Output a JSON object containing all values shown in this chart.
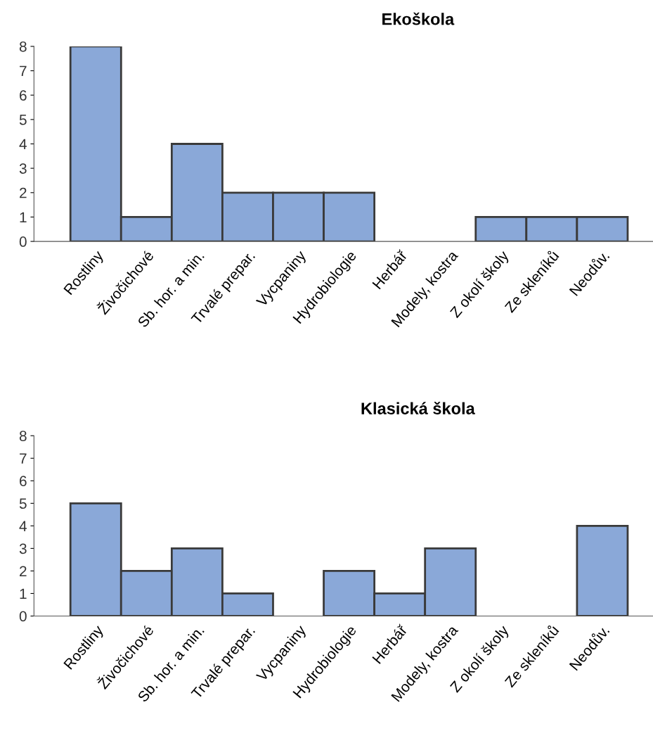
{
  "chart_data": [
    {
      "type": "bar",
      "title": "Ekoškola",
      "categories": [
        "Rostliny",
        "Živočichové",
        "Sb. hor. a min.",
        "Trvalé prepar.",
        "Vycpaniny",
        "Hydrobiologie",
        "Herbář",
        "Modely, kostra",
        "Z okolí školy",
        "Ze skleníků",
        "Neodův."
      ],
      "values": [
        8,
        1,
        4,
        2,
        2,
        2,
        0,
        0,
        1,
        1,
        1
      ],
      "color": "#8aa8d8",
      "ylim": [
        0,
        8
      ],
      "yticks": [
        0,
        1,
        2,
        3,
        4,
        5,
        6,
        7,
        8
      ],
      "grid": false,
      "legend": false
    },
    {
      "type": "bar",
      "title": "Klasická škola",
      "categories": [
        "Rostliny",
        "Živočichové",
        "Sb. hor. a min.",
        "Trvalé prepar.",
        "Vycpaniny",
        "Hydrobiologie",
        "Herbář",
        "Modely, kostra",
        "Z okolí školy",
        "Ze skleníků",
        "Neodův."
      ],
      "values": [
        5,
        2,
        3,
        1,
        0,
        2,
        1,
        3,
        0,
        0,
        4
      ],
      "color": "#8aa8d8",
      "ylim": [
        0,
        8
      ],
      "yticks": [
        0,
        1,
        2,
        3,
        4,
        5,
        6,
        7,
        8
      ],
      "grid": false,
      "legend": false
    }
  ]
}
